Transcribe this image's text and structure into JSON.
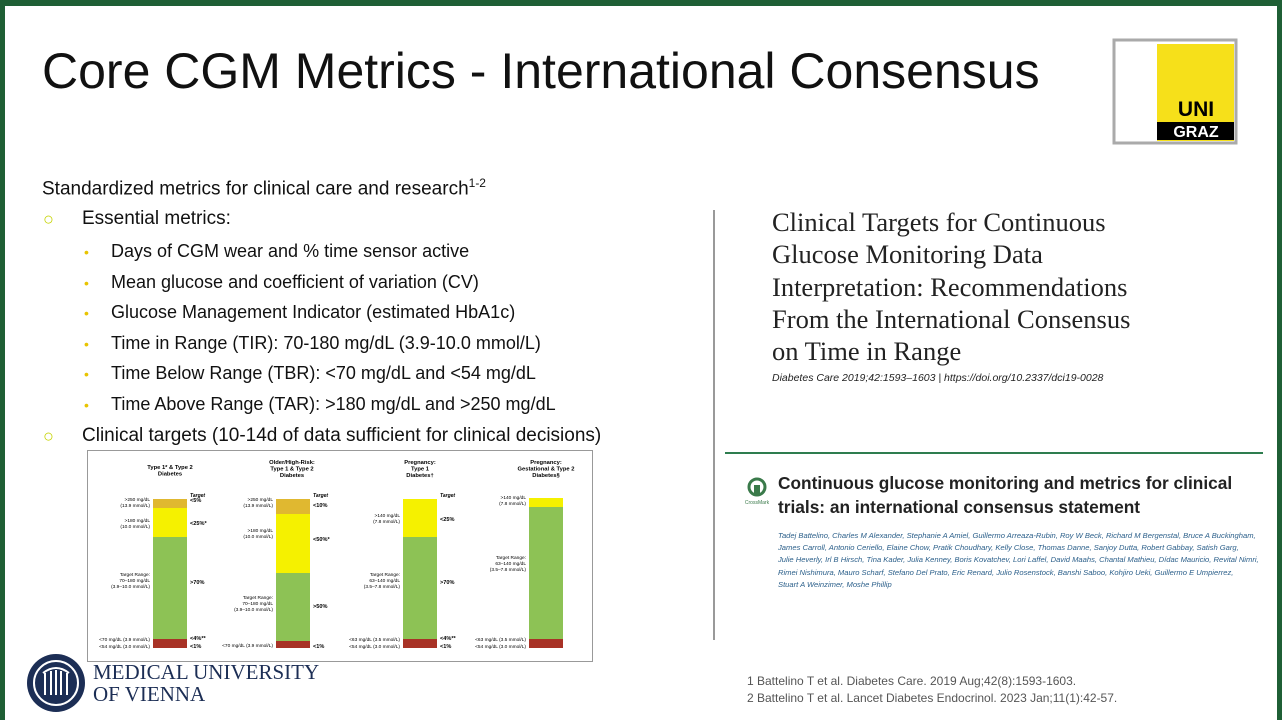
{
  "header": {
    "title": "Core CGM Metrics - International Consensus",
    "logo": [
      "UNI",
      "GRAZ"
    ]
  },
  "content": {
    "intro": "Standardized metrics for clinical care and research",
    "intro_ref": "1-2",
    "items": [
      {
        "text": "Essential metrics:",
        "subitems": [
          "Days of CGM wear and % time sensor active",
          "Mean glucose and coefficient of variation (CV)",
          "Glucose Management Indicator (estimated HbA1c)",
          "Time in Range (TIR): 70-180 mg/dL (3.9-10.0 mmol/L)",
          "Time Below Range (TBR): <70 mg/dL and <54 mg/dL",
          "Time Above Range (TAR): >180 mg/dL and >250 mg/dL"
        ]
      },
      {
        "text": "Clinical targets (10-14d of data sufficient for clinical decisions)"
      }
    ]
  },
  "figure": {
    "columns": [
      {
        "header": [
          "Type 1* & Type 2",
          "Diabetes"
        ],
        "target_heading": "Target",
        "labels": [
          [
            ">250 mg/dL",
            "(13.9 mmol/L)"
          ],
          [
            ">180 mg/dL",
            "(10.0 mmol/L)"
          ],
          [
            "Target Range:",
            "70–180 mg/dL",
            "(3.9–10.0 mmol/L)"
          ],
          [
            "<70 mg/dL (3.9 mmol/L)"
          ],
          [
            "<54 mg/dL (3.0 mmol/L)"
          ]
        ],
        "targets": [
          "<5%",
          "<25%*",
          ">70%",
          "<4%**",
          "<1%"
        ]
      },
      {
        "header": [
          "Older/High-Risk:",
          "Type 1 & Type 2",
          "Diabetes"
        ],
        "target_heading": "Target",
        "labels": [
          [
            ">250 mg/dL",
            "(13.9 mmol/L)"
          ],
          [
            ">180 mg/dL",
            "(10.0 mmol/L)"
          ],
          [
            "Target Range:",
            "70–180 mg/dL",
            "(3.9–10.0 mmol/L)"
          ],
          [
            "<70 mg/dL (3.9 mmol/L)"
          ]
        ],
        "targets": [
          "<10%",
          "<50%*",
          ">50%",
          "<1%"
        ]
      },
      {
        "header": [
          "Pregnancy:",
          "Type 1",
          "Diabetes†"
        ],
        "target_heading": "Target",
        "labels": [
          [
            ">140 mg/dL",
            "(7.8 mmol/L)"
          ],
          [
            "Target Range:",
            "63–140 mg/dL",
            "(3.5–7.8 mmol/L)"
          ],
          [
            "<63 mg/dL (3.5 mmol/L)"
          ],
          [
            "<54 mg/dL (3.0 mmol/L)"
          ]
        ],
        "targets": [
          "<25%",
          ">70%",
          "<4%**",
          "<1%"
        ]
      },
      {
        "header": [
          "Pregnancy:",
          "Gestational & Type 2",
          "Diabetes§"
        ],
        "labels": [
          [
            ">140 mg/dL",
            "(7.8 mmol/L)"
          ],
          [
            "Target Range:",
            "63–140 mg/dL",
            "(3.5–7.8 mmol/L)"
          ],
          [
            "<63 mg/dL (3.5 mmol/L)"
          ],
          [
            "<54 mg/dL (3.0 mmol/L)"
          ]
        ]
      }
    ]
  },
  "paper1": {
    "title_lines": [
      "Clinical Targets for Continuous",
      "Glucose Monitoring Data",
      "Interpretation: Recommendations",
      "From the International Consensus",
      "on Time in Range"
    ],
    "citation": "Diabetes Care 2019;42:1593–1603 | https://doi.org/10.2337/dci19-0028"
  },
  "paper2": {
    "crossmark": "CrossMark",
    "title_lines": [
      "Continuous glucose monitoring and metrics for clinical",
      "trials: an international consensus statement"
    ],
    "authors_lines": [
      "Tadej Battelino, Charles M Alexander, Stephanie A Amiel, Guillermo Arreaza-Rubin, Roy W Beck, Richard M Bergenstal, Bruce A Buckingham,",
      "James Carroll, Antonio Ceriello, Elaine Chow, Pratik Choudhary, Kelly Close, Thomas Danne, Sanjoy Dutta, Robert Gabbay, Satish Garg,",
      "Julie Heverly, Irl B Hirsch, Tina Kader, Julia Kenney, Boris Kovatchev, Lori Laffel, David Maahs, Chantal Mathieu, Dídac Mauricio, Revital Nimri,",
      "Rimei Nishimura, Mauro Scharf, Stefano Del Prato, Eric Renard, Julio Rosenstock, Banshi Saboo, Kohjiro Ueki, Guillermo E Umpierrez,",
      "Stuart A Weinzimer, Moshe Phillip"
    ]
  },
  "references": [
    "1 Battelino T et al. Diabetes Care. 2019 Aug;42(8):1593-1603.",
    "2 Battelino T et al. Lancet Diabetes Endocrinol. 2023 Jan;11(1):42-57."
  ],
  "footer_logo": [
    "MEDICAL UNIVERSITY",
    "OF VIENNA"
  ]
}
